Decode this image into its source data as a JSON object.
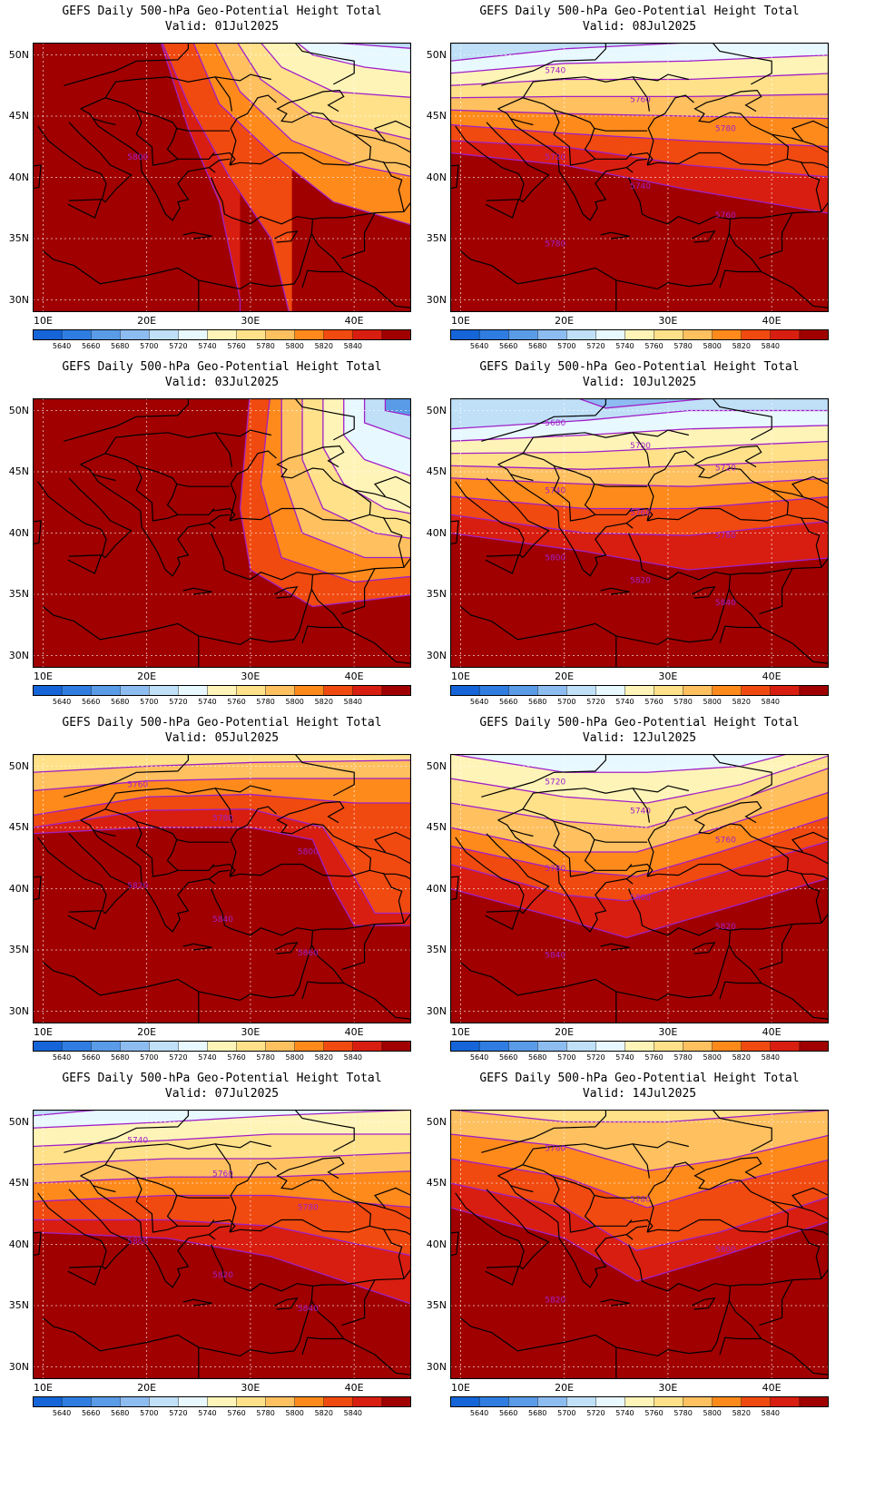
{
  "title_line": "GEFS Daily 500-hPa Geo-Potential Height Total",
  "valid_prefix": "Valid:",
  "lat_labels": [
    "50N",
    "45N",
    "40N",
    "35N",
    "30N"
  ],
  "lon_labels": [
    "10E",
    "20E",
    "30E",
    "40E"
  ],
  "colorbar": {
    "levels": [
      5640,
      5660,
      5680,
      5700,
      5720,
      5740,
      5760,
      5780,
      5800,
      5820,
      5840
    ],
    "colors": [
      "#1565d8",
      "#2f7de0",
      "#5a9be8",
      "#8dbcf0",
      "#bfe0f7",
      "#e8f8ff",
      "#fff4b8",
      "#ffe18a",
      "#ffc060",
      "#ff8a1c",
      "#f04a10",
      "#d81e10",
      "#a00000"
    ]
  },
  "panels": [
    {
      "valid": "01Jul2025",
      "labels": [
        "5800"
      ]
    },
    {
      "valid": "08Jul2025",
      "labels": [
        "5740",
        "5760",
        "5780",
        "5720",
        "5740",
        "5760",
        "5780"
      ]
    },
    {
      "valid": "03Jul2025",
      "labels": []
    },
    {
      "valid": "10Jul2025",
      "labels": [
        "5680",
        "5700",
        "5720",
        "5740",
        "5760",
        "5780",
        "5800",
        "5820",
        "5840"
      ]
    },
    {
      "valid": "05Jul2025",
      "labels": [
        "5760",
        "5780",
        "5800",
        "5820",
        "5840",
        "5860"
      ]
    },
    {
      "valid": "12Jul2025",
      "labels": [
        "5720",
        "5740",
        "5760",
        "5780",
        "5800",
        "5820",
        "5840"
      ]
    },
    {
      "valid": "07Jul2025",
      "labels": [
        "5740",
        "5760",
        "5780",
        "5800",
        "5820",
        "5840"
      ]
    },
    {
      "valid": "14Jul2025",
      "labels": [
        "5760",
        "5780",
        "5800",
        "5820"
      ]
    }
  ]
}
